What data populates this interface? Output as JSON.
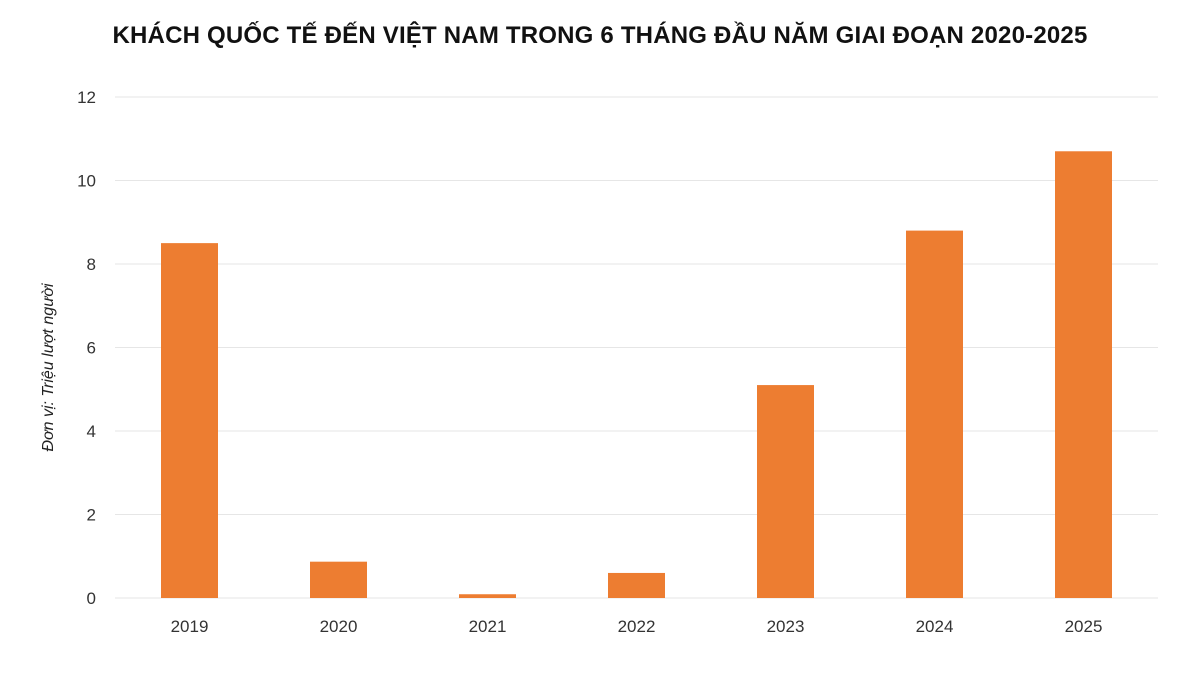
{
  "chart_data": {
    "type": "bar",
    "title": "KHÁCH QUỐC TẾ ĐẾN VIỆT NAM TRONG 6 THÁNG ĐẦU NĂM GIAI ĐOẠN 2020-2025",
    "xlabel": "",
    "ylabel": "Đơn vị: Triệu lượt người",
    "categories": [
      "2019",
      "2020",
      "2021",
      "2022",
      "2023",
      "2024",
      "2025"
    ],
    "values": [
      8.5,
      0.87,
      0.09,
      0.6,
      5.1,
      8.8,
      10.7
    ],
    "ylim": [
      0,
      12
    ],
    "yticks": [
      0,
      2,
      4,
      6,
      8,
      10,
      12
    ],
    "grid": true,
    "legend": "none",
    "bar_color": "#ED7D31",
    "grid_color": "#E6E6E6"
  }
}
